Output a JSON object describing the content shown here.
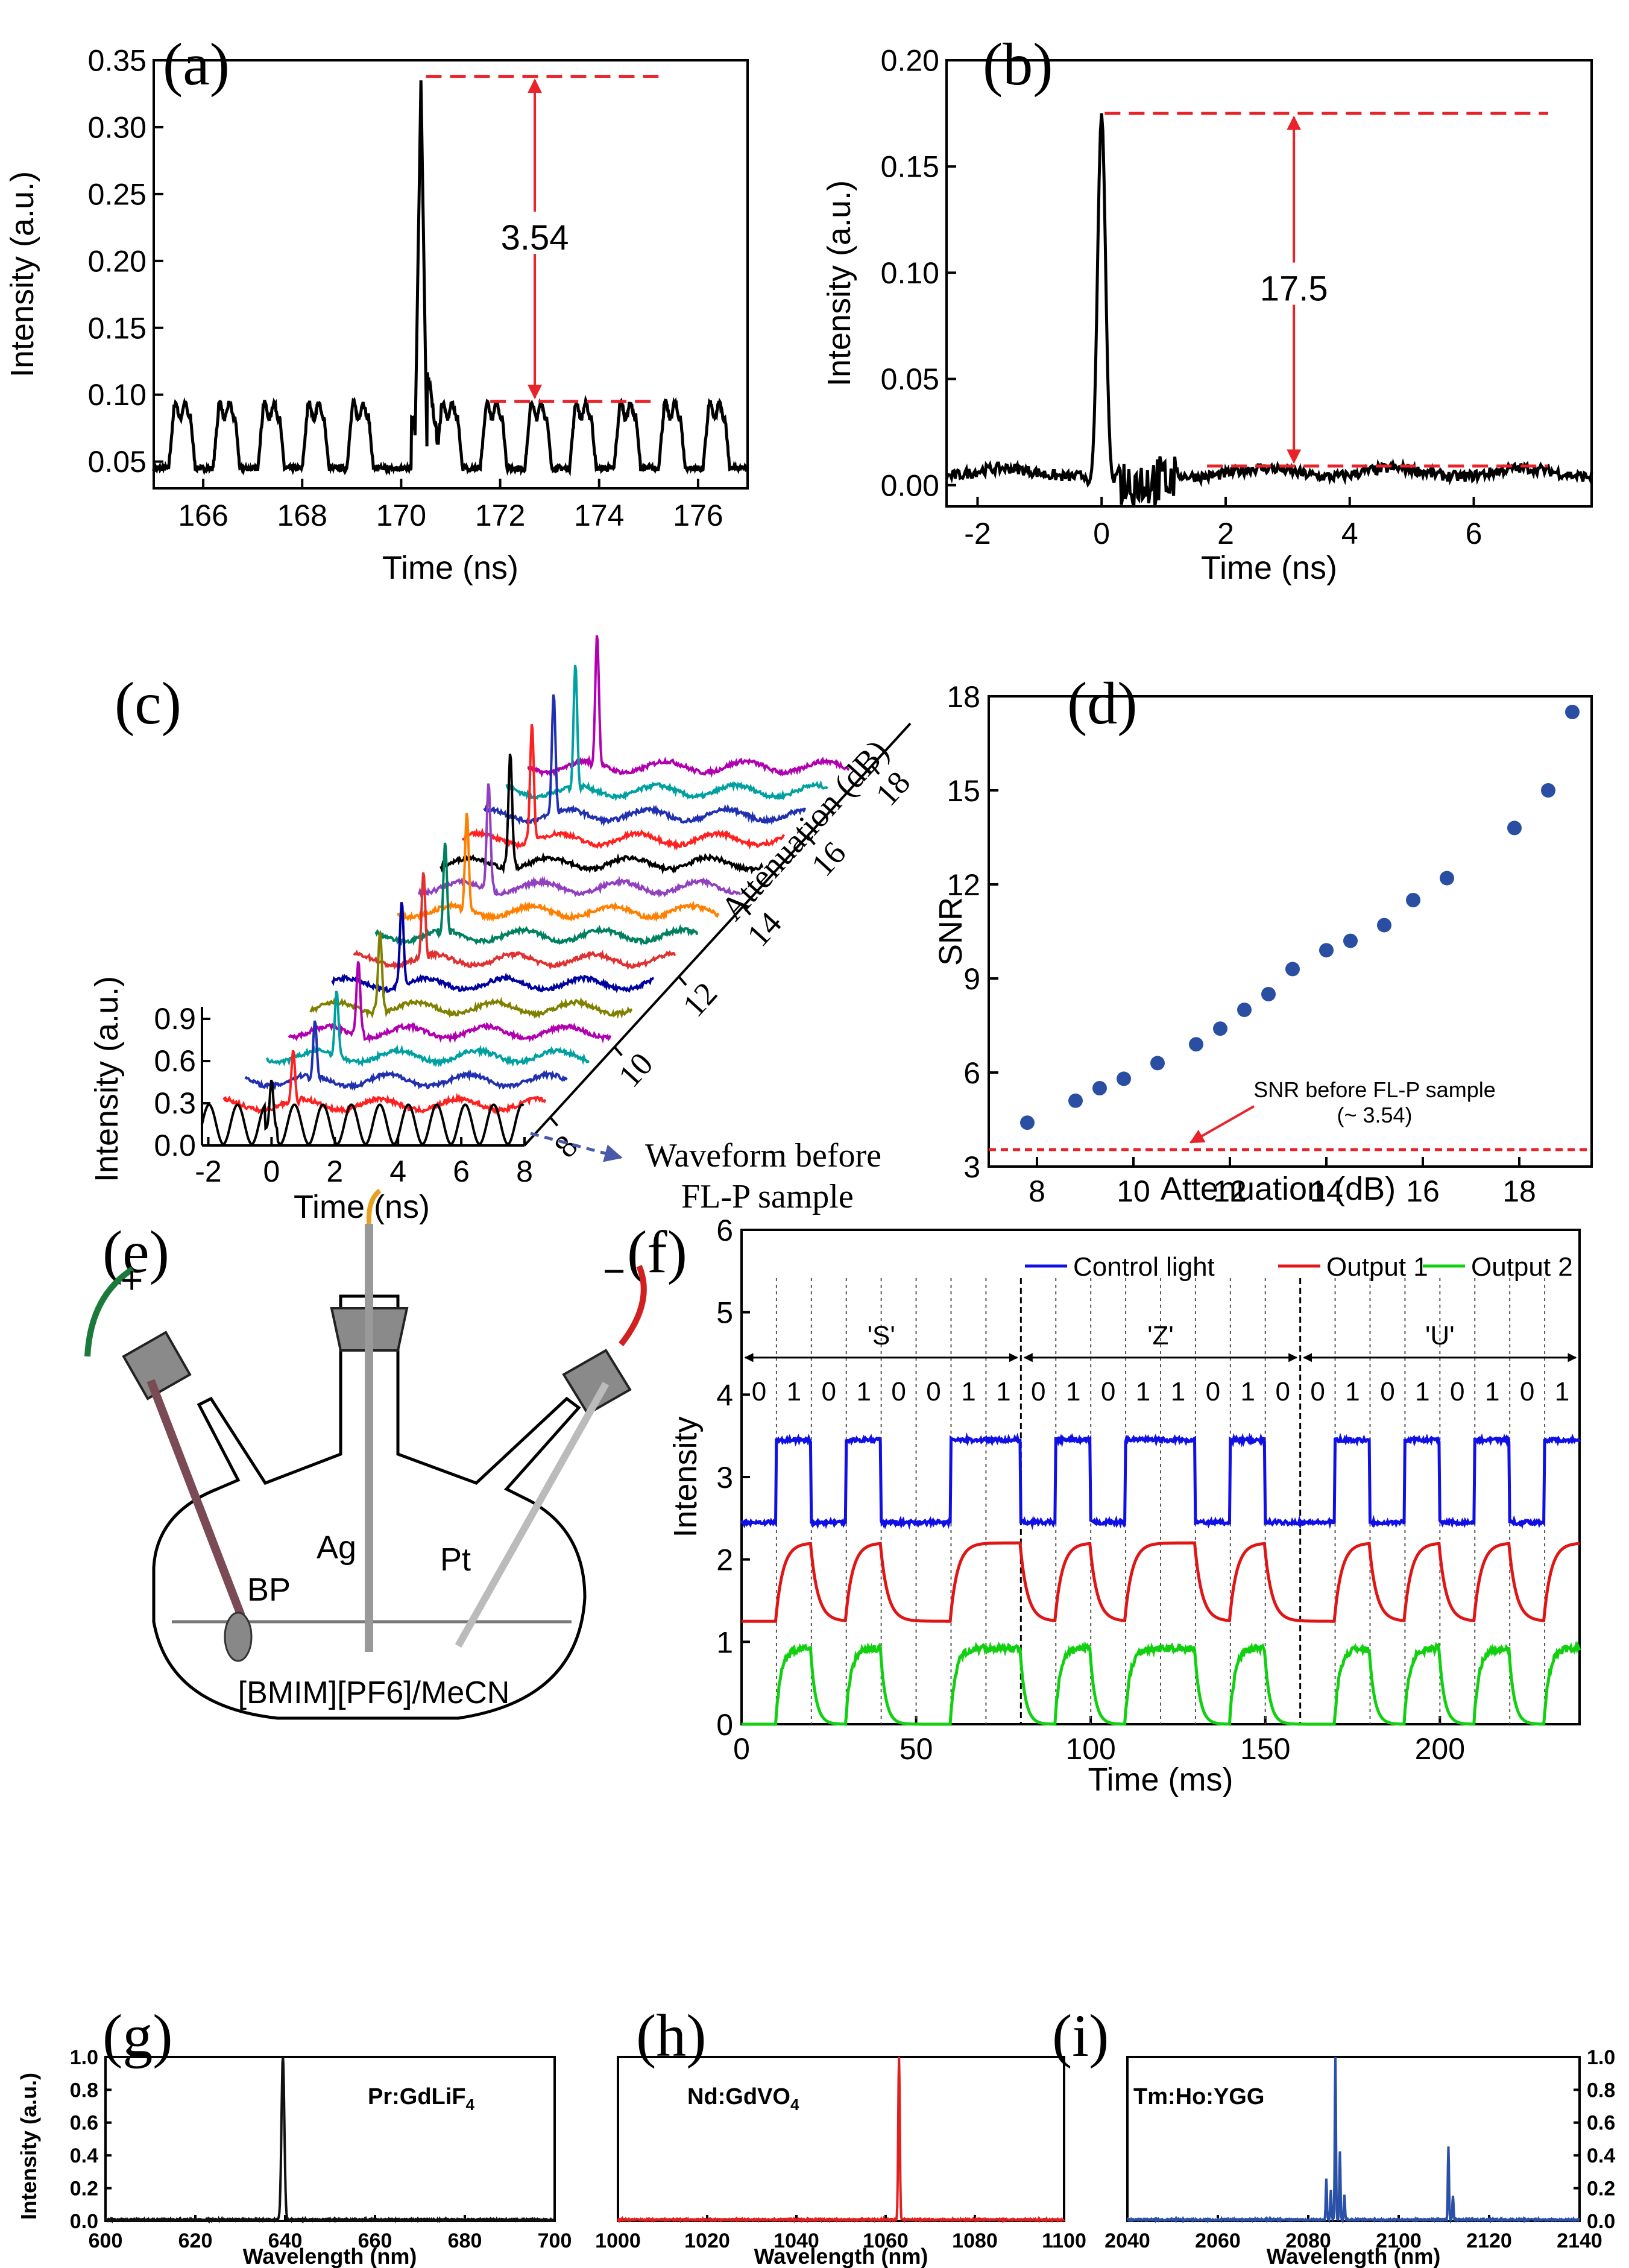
{
  "figure": {
    "panels": [
      {
        "id": "a",
        "label": "(a)"
      },
      {
        "id": "b",
        "label": "(b)"
      },
      {
        "id": "c",
        "label": "(c)"
      },
      {
        "id": "d",
        "label": "(d)"
      },
      {
        "id": "e",
        "label": "(e)"
      },
      {
        "id": "f",
        "label": "(f)"
      },
      {
        "id": "g",
        "label": "(g)"
      },
      {
        "id": "h",
        "label": "(h)"
      },
      {
        "id": "i",
        "label": "(i)"
      }
    ]
  },
  "colors": {
    "trace": "#000000",
    "marker": "#e8242a",
    "scatter": "#2a4fa2",
    "control": "#1010e6",
    "out1": "#e01515",
    "out2": "#10d010",
    "g_trace": "#111111",
    "h_trace": "#e02020",
    "i_trace": "#2a50a8",
    "wave_annot": "#4a5aaa",
    "bits_text": "#e030e0"
  },
  "diagram_e": {
    "plus": "+",
    "minus": "−",
    "bp": "BP",
    "ag": "Ag",
    "pt": "Pt",
    "solution": "[BMIM][PF6]/MeCN"
  },
  "chart_data": [
    {
      "id": "a",
      "type": "line",
      "xlabel": "Time (ns)",
      "ylabel": "Intensity (a.u.)",
      "xlim": [
        165,
        177
      ],
      "ylim": [
        0.03,
        0.35
      ],
      "xticks": [
        166,
        168,
        170,
        172,
        174,
        176
      ],
      "yticks": [
        0.05,
        0.1,
        0.15,
        0.2,
        0.25,
        0.3,
        0.35
      ],
      "ytick_labels": [
        "0.05",
        "0.10",
        "0.15",
        "0.20",
        "0.25",
        "0.30",
        "0.35"
      ],
      "baseline_low": 0.045,
      "baseline_high": 0.088,
      "pulse_period_ns": 0.9,
      "peak_x": 170.4,
      "peak_y": 0.335,
      "ref_lines": [
        0.338,
        0.095
      ],
      "annotation": "3.54"
    },
    {
      "id": "b",
      "type": "line",
      "xlabel": "Time (ns)",
      "ylabel": "Intensity (a.u.)",
      "xlim": [
        -2.5,
        7.9
      ],
      "ylim": [
        -0.01,
        0.2
      ],
      "xticks": [
        -2,
        0,
        2,
        4,
        6
      ],
      "yticks": [
        0.0,
        0.05,
        0.1,
        0.15,
        0.2
      ],
      "ytick_labels": [
        "0.00",
        "0.05",
        "0.10",
        "0.15",
        "0.20"
      ],
      "peak_x": 0.0,
      "peak_y": 0.175,
      "noise_level": 0.006,
      "ref_lines": [
        0.175,
        0.009
      ],
      "annotation": "17.5"
    },
    {
      "id": "c",
      "type": "line",
      "xlabel": "Time (ns)",
      "ylabel": "Intensity (a.u.)",
      "depth_label": "Attenuation (dB)",
      "xticks": [
        -2,
        0,
        2,
        4,
        6,
        8
      ],
      "yticks": [
        0.0,
        0.3,
        0.6,
        0.9
      ],
      "ytick_labels": [
        "0.0",
        "0.3",
        "0.6",
        "0.9"
      ],
      "depth_ticks": [
        8,
        10,
        12,
        14,
        16,
        18
      ],
      "series_colors": [
        "#000000",
        "#ff2020",
        "#2030b0",
        "#00a0a0",
        "#b000b0",
        "#808000",
        "#0000a0",
        "#e03030",
        "#008060",
        "#ff8000",
        "#9040c0",
        "#000000",
        "#ff2020",
        "#2030b0",
        "#00a0a0",
        "#b000b0"
      ],
      "annotation": "Waveform before FL-P sample"
    },
    {
      "id": "d",
      "type": "scatter",
      "xlabel": "Attenuation (dB)",
      "ylabel": "SNR",
      "xlim": [
        7,
        19.5
      ],
      "ylim": [
        3,
        18
      ],
      "xticks": [
        8,
        10,
        12,
        14,
        16,
        18
      ],
      "yticks": [
        3,
        6,
        9,
        12,
        15,
        18
      ],
      "x": [
        7.8,
        8.8,
        9.3,
        9.8,
        10.5,
        11.3,
        11.8,
        12.3,
        12.8,
        13.3,
        14.0,
        14.5,
        15.2,
        15.8,
        16.5,
        17.9,
        18.6,
        19.1
      ],
      "y": [
        4.4,
        5.1,
        5.5,
        5.8,
        6.3,
        6.9,
        7.4,
        8.0,
        8.5,
        9.3,
        9.9,
        10.2,
        10.7,
        11.5,
        12.2,
        13.8,
        15.0,
        17.5
      ],
      "ref_value": 3.54,
      "ref_label": "SNR before FL-P sample",
      "ref_label2": "(~ 3.54)"
    },
    {
      "id": "f",
      "type": "line",
      "xlabel": "Time (ms)",
      "ylabel": "Intensity",
      "xlim": [
        0,
        240
      ],
      "ylim": [
        0,
        6
      ],
      "xticks": [
        0,
        50,
        100,
        150,
        200
      ],
      "yticks": [
        0,
        1,
        2,
        3,
        4,
        5,
        6
      ],
      "legend": [
        "Control light",
        "Output 1",
        "Output 2"
      ],
      "legend_position": "top-right",
      "groups": [
        "'S'",
        "'Z'",
        "'U'"
      ],
      "bits": [
        0,
        1,
        0,
        1,
        0,
        0,
        1,
        1,
        0,
        1,
        0,
        1,
        1,
        0,
        1,
        0,
        0,
        1,
        0,
        1,
        0,
        1,
        0,
        1
      ],
      "bit_period_ms": 10,
      "control_levels": [
        2.45,
        3.45
      ],
      "output1_levels": [
        1.25,
        2.2
      ],
      "output2_levels": [
        0.0,
        0.92
      ]
    },
    {
      "id": "g",
      "type": "line",
      "xlabel": "Wavelength (nm)",
      "ylabel": "Intensity (a.u.)",
      "xlim": [
        600,
        700
      ],
      "ylim": [
        0,
        1.0
      ],
      "xticks": [
        600,
        620,
        640,
        660,
        680,
        700
      ],
      "yticks": [
        0.0,
        0.2,
        0.4,
        0.6,
        0.8,
        1.0
      ],
      "ytick_labels": [
        "0.0",
        "0.2",
        "0.4",
        "0.6",
        "0.8",
        "1.0"
      ],
      "peak_x": 639.5,
      "peak_y": 1.0,
      "annotation": "Pr:GdLiF",
      "annotation_sub": "4"
    },
    {
      "id": "h",
      "type": "line",
      "xlabel": "Wavelength (nm)",
      "xlim": [
        1000,
        1100
      ],
      "ylim": [
        0,
        1.0
      ],
      "xticks": [
        1000,
        1020,
        1040,
        1060,
        1080,
        1100
      ],
      "peak_x": 1063,
      "peak_y": 1.0,
      "annotation": "Nd:GdVO",
      "annotation_sub": "4"
    },
    {
      "id": "i",
      "type": "line",
      "xlabel": "Wavelength (nm)",
      "xlim": [
        2040,
        2140
      ],
      "ylim": [
        0,
        1.0
      ],
      "xticks": [
        2040,
        2060,
        2080,
        2100,
        2120,
        2140
      ],
      "yticks": [
        0.0,
        0.2,
        0.4,
        0.6,
        0.8,
        1.0
      ],
      "ytick_labels": [
        "0.0",
        "0.2",
        "0.4",
        "0.6",
        "0.8",
        "1.0"
      ],
      "peaks": [
        [
          2084,
          0.25
        ],
        [
          2085,
          0.18
        ],
        [
          2086,
          1.0
        ],
        [
          2087,
          0.42
        ],
        [
          2088,
          0.15
        ],
        [
          2111,
          0.45
        ],
        [
          2112,
          0.15
        ]
      ],
      "annotation": "Tm:Ho:YGG"
    }
  ]
}
